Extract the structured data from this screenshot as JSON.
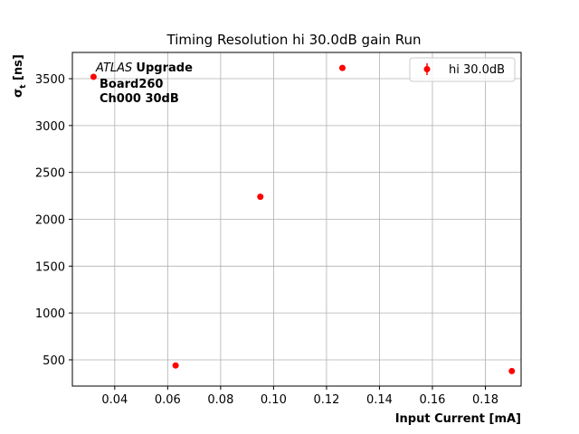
{
  "chart_data": {
    "type": "scatter",
    "title": "Timing Resolution hi 30.0dB gain Run",
    "xlabel": "Input Current [mA]",
    "ylabel": "σ",
    "ylabel_sub": "t",
    "ylabel_unit": " [ns]",
    "xlim": [
      0.024,
      0.1935
    ],
    "ylim": [
      220,
      3780
    ],
    "xticks": [
      0.04,
      0.06,
      0.08,
      0.1,
      0.12,
      0.14,
      0.16,
      0.18
    ],
    "xtick_labels": [
      "0.04",
      "0.06",
      "0.08",
      "0.10",
      "0.12",
      "0.14",
      "0.16",
      "0.18"
    ],
    "yticks": [
      500,
      1000,
      1500,
      2000,
      2500,
      3000,
      3500
    ],
    "ytick_labels": [
      "500",
      "1000",
      "1500",
      "2000",
      "2500",
      "3000",
      "3500"
    ],
    "grid": true,
    "legend_position": "top-right",
    "series": [
      {
        "name": "hi 30.0dB",
        "color": "#ff0000",
        "marker": "circle-with-errorbar",
        "x": [
          0.032,
          0.063,
          0.095,
          0.126,
          0.19
        ],
        "y": [
          3520,
          440,
          2240,
          3615,
          380
        ]
      }
    ],
    "annotation": {
      "atlas": "ATLAS",
      "upgrade": "Upgrade",
      "board": "Board260",
      "channel": "Ch000 30dB"
    }
  }
}
